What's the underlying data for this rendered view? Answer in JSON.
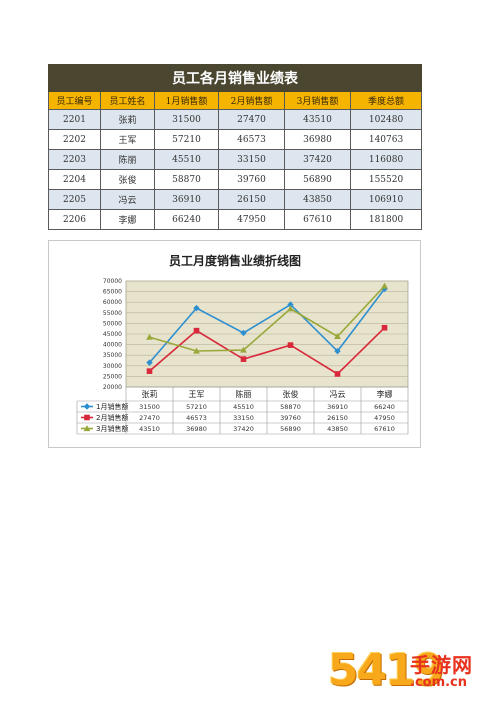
{
  "table": {
    "title": "员工各月销售业绩表",
    "headers": [
      "员工编号",
      "员工姓名",
      "1月销售额",
      "2月销售额",
      "3月销售额",
      "季度总额"
    ],
    "rows": [
      [
        "2201",
        "张莉",
        "31500",
        "27470",
        "43510",
        "102480"
      ],
      [
        "2202",
        "王军",
        "57210",
        "46573",
        "36980",
        "140763"
      ],
      [
        "2203",
        "陈丽",
        "45510",
        "33150",
        "37420",
        "116080"
      ],
      [
        "2204",
        "张俊",
        "58870",
        "39760",
        "56890",
        "155520"
      ],
      [
        "2205",
        "冯云",
        "36910",
        "26150",
        "43850",
        "106910"
      ],
      [
        "2206",
        "李娜",
        "66240",
        "47950",
        "67610",
        "181800"
      ]
    ]
  },
  "chart_data": {
    "type": "line",
    "title": "员工月度销售业绩折线图",
    "categories": [
      "张莉",
      "王军",
      "陈丽",
      "张俊",
      "冯云",
      "李娜"
    ],
    "ylim": [
      20000,
      70000
    ],
    "yticks": [
      "70000",
      "65000",
      "60000",
      "55000",
      "50000",
      "45000",
      "40000",
      "35000",
      "30000",
      "25000",
      "20000"
    ],
    "grid": true,
    "legend": "data-table-left",
    "series": [
      {
        "name": "1月销售额",
        "color": "#2e8fd0",
        "marker": "diamond",
        "values": [
          31500,
          57210,
          45510,
          58870,
          36910,
          66240
        ],
        "labels": [
          "31500",
          "57210",
          "45510",
          "58870",
          "36910",
          "66240"
        ]
      },
      {
        "name": "2月销售额",
        "color": "#d8283a",
        "marker": "square",
        "values": [
          27470,
          46573,
          33150,
          39760,
          26150,
          47950
        ],
        "labels": [
          "27470",
          "46573",
          "33150",
          "39760",
          "26150",
          "47950"
        ]
      },
      {
        "name": "3月销售额",
        "color": "#9aa83a",
        "marker": "triangle",
        "values": [
          43510,
          36980,
          37420,
          56890,
          43850,
          67610
        ],
        "labels": [
          "43510",
          "36980",
          "37420",
          "56890",
          "43850",
          "67610"
        ]
      }
    ]
  },
  "watermark": {
    "digits": "5419",
    "name": "手游网",
    "domain": ".com.cn"
  }
}
